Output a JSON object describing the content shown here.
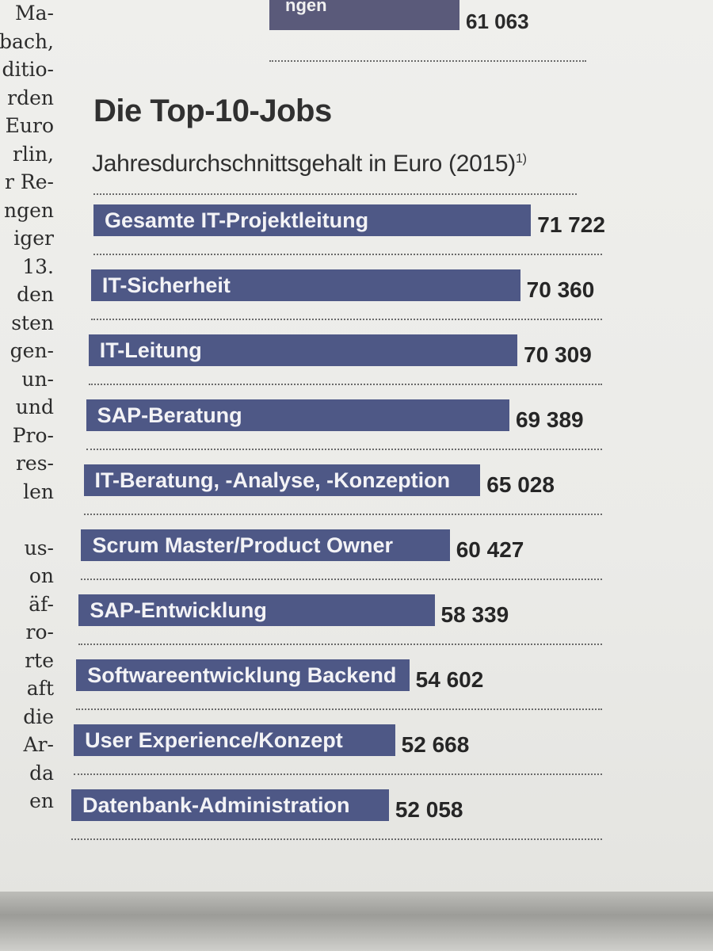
{
  "previous_table": {
    "bar_label_fragment": "ngen",
    "value": "61 063"
  },
  "left_column_fragments": [
    "Ma-",
    "bach,",
    "ditio-",
    "rden",
    "Euro",
    "rlin,",
    "r Re-",
    "ngen",
    "iger",
    "13.",
    "den",
    "sten",
    "gen-",
    "un-",
    "und",
    "Pro-",
    "res-",
    "len",
    "",
    "us-",
    "on",
    "äf-",
    "ro-",
    "rte",
    "aft",
    "die",
    "Ar-",
    "da",
    "en"
  ],
  "chart_data": {
    "type": "bar",
    "orientation": "horizontal",
    "title": "Die Top-10-Jobs",
    "subtitle": "Jahresdurchschnittsgehalt in Euro (2015)",
    "subtitle_footnote": "1)",
    "categories": [
      "Gesamte IT-Projektleitung",
      "IT-Sicherheit",
      "IT-Leitung",
      "SAP-Beratung",
      "IT-Beratung, -Analyse, -Konzeption",
      "Scrum Master/Product Owner",
      "SAP-Entwicklung",
      "Softwareentwicklung Backend",
      "User Experience/Konzept",
      "Datenbank-Administration"
    ],
    "values": [
      71722,
      70360,
      70309,
      69389,
      65028,
      60427,
      58339,
      54602,
      52668,
      52058
    ],
    "value_labels": [
      "71 722",
      "70 360",
      "70 309",
      "69 389",
      "65 028",
      "60 427",
      "58 339",
      "54 602",
      "52 668",
      "52 058"
    ],
    "bar_color": "#4e5886",
    "label_color": "#f3f3f6",
    "value_color": "#262626"
  }
}
